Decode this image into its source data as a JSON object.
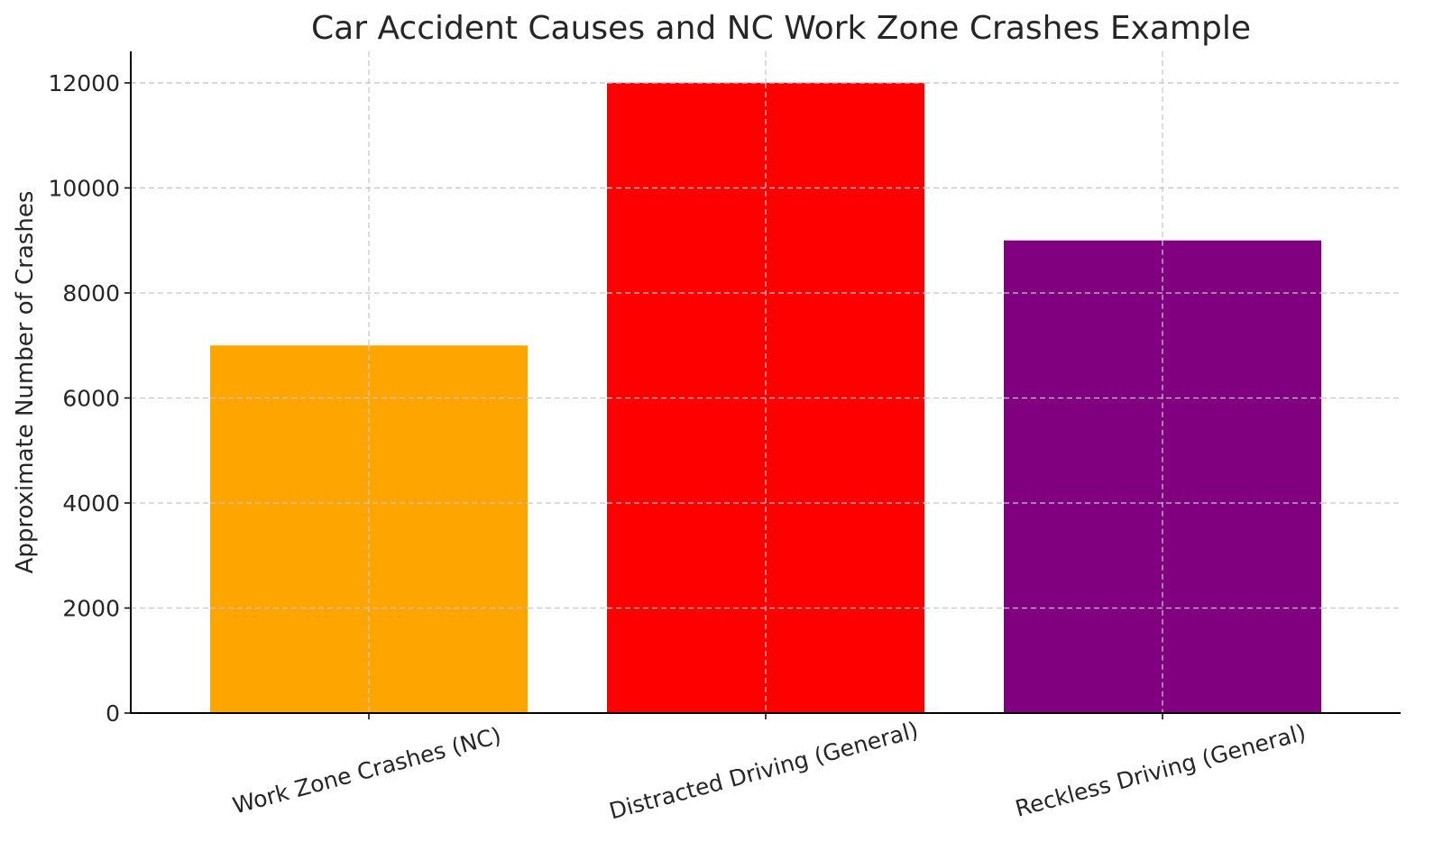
{
  "chart_data": {
    "type": "bar",
    "title": "Car Accident Causes and NC Work Zone Crashes Example",
    "xlabel": "",
    "ylabel": "Approximate Number of Crashes",
    "categories": [
      "Work Zone Crashes (NC)",
      "Distracted Driving (General)",
      "Reckless Driving (General)"
    ],
    "values": [
      7000,
      12000,
      9000
    ],
    "colors": [
      "#FFA500",
      "#FF0000",
      "#800080"
    ],
    "ylim": [
      0,
      12600
    ],
    "yticks": [
      0,
      2000,
      4000,
      6000,
      8000,
      10000,
      12000
    ],
    "ytick_labels": [
      "0",
      "2000",
      "4000",
      "6000",
      "8000",
      "10000",
      "12000"
    ],
    "grid": true,
    "grid_style": "dashed"
  }
}
